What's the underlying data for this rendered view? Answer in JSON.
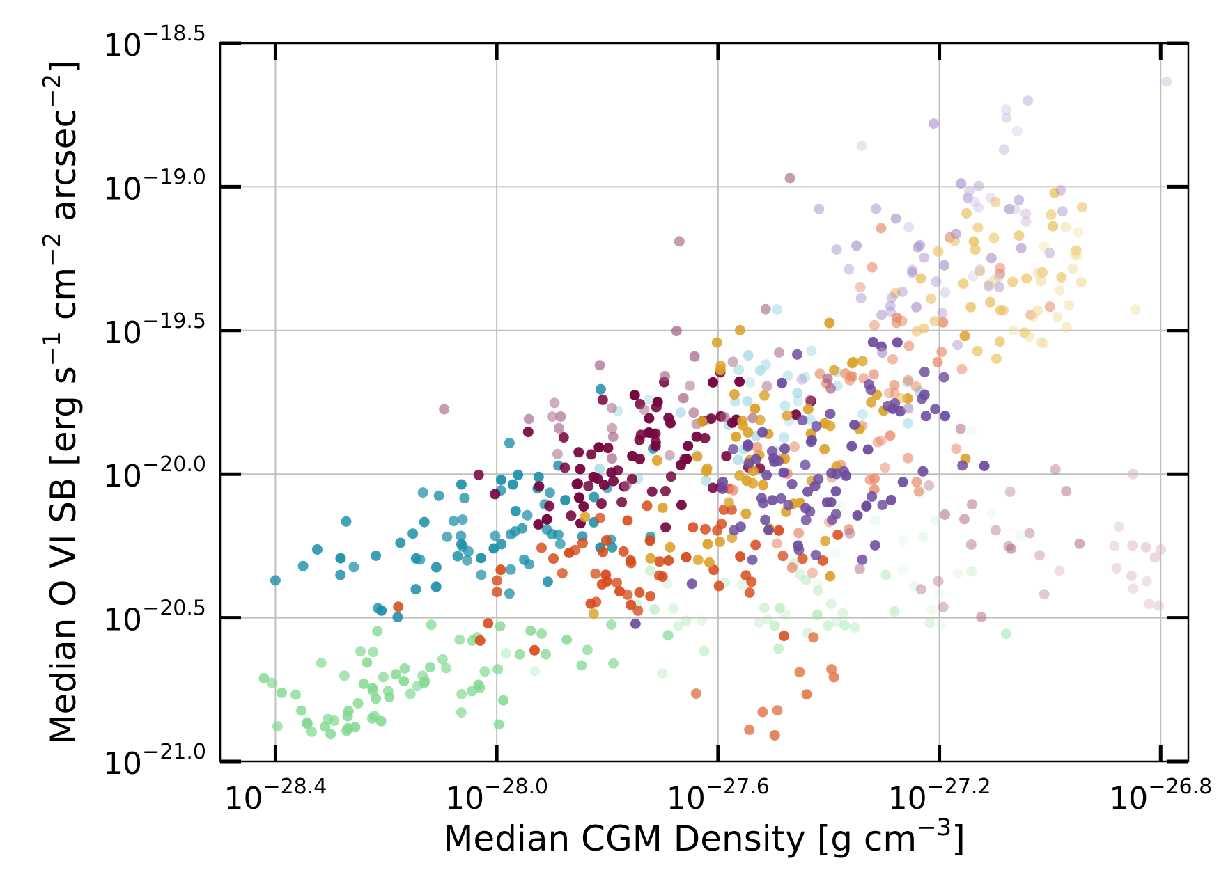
{
  "chart_data": {
    "type": "scatter",
    "title": "",
    "xlabel": {
      "main": "Median CGM Density [g cm",
      "sup": "−3",
      "end": "]"
    },
    "ylabel": {
      "p1": "Median O VI SB [erg s",
      "s1": "−1",
      "p2": " cm",
      "s2": "−2",
      "p3": " arcsec",
      "s3": "−2",
      "p4": "]"
    },
    "x_scale": "log10",
    "y_scale": "log10",
    "xlim": [
      -28.5,
      -26.75
    ],
    "ylim": [
      -21.0,
      -18.5
    ],
    "grid": true,
    "legend": "none",
    "x_ticks": [
      {
        "value": -28.4,
        "base": "10",
        "exp": "−28.4"
      },
      {
        "value": -28.0,
        "base": "10",
        "exp": "−28.0"
      },
      {
        "value": -27.6,
        "base": "10",
        "exp": "−27.6"
      },
      {
        "value": -27.2,
        "base": "10",
        "exp": "−27.2"
      },
      {
        "value": -26.8,
        "base": "10",
        "exp": "−26.8"
      }
    ],
    "y_ticks": [
      {
        "value": -21.0,
        "base": "10",
        "exp": "−21.0"
      },
      {
        "value": -20.5,
        "base": "10",
        "exp": "−20.5"
      },
      {
        "value": -20.0,
        "base": "10",
        "exp": "−20.0"
      },
      {
        "value": -19.5,
        "base": "10",
        "exp": "−19.5"
      },
      {
        "value": -19.0,
        "base": "10",
        "exp": "−19.0"
      },
      {
        "value": -18.5,
        "base": "10",
        "exp": "−18.5"
      }
    ],
    "series": [
      {
        "name": "light-green",
        "color": "#7fd88f",
        "cx": -28.15,
        "cy": -20.72,
        "sx": 0.16,
        "sy": 0.13,
        "rho": 0.5,
        "n": 70,
        "alpha": [
          0.65,
          0.85
        ],
        "seed": 11
      },
      {
        "name": "pale-green",
        "color": "#9fe3a8",
        "cx": -27.55,
        "cy": -20.47,
        "sx": 0.2,
        "sy": 0.09,
        "rho": 0.2,
        "n": 40,
        "alpha": [
          0.25,
          0.55
        ],
        "seed": 12
      },
      {
        "name": "faint-green",
        "color": "#c8f0cc",
        "cx": -27.25,
        "cy": -20.25,
        "sx": 0.13,
        "sy": 0.15,
        "rho": 0.1,
        "n": 20,
        "alpha": [
          0.2,
          0.4
        ],
        "seed": 13
      },
      {
        "name": "teal",
        "color": "#1c8fa8",
        "cx": -28.0,
        "cy": -20.2,
        "sx": 0.14,
        "sy": 0.16,
        "rho": 0.5,
        "n": 70,
        "alpha": [
          0.7,
          0.95
        ],
        "seed": 21
      },
      {
        "name": "light-teal",
        "color": "#8fd0e0",
        "cx": -27.55,
        "cy": -19.8,
        "sx": 0.12,
        "sy": 0.15,
        "rho": 0.4,
        "n": 36,
        "alpha": [
          0.35,
          0.65
        ],
        "seed": 22
      },
      {
        "name": "red-orange",
        "color": "#d64a1a",
        "cx": -27.75,
        "cy": -20.3,
        "sx": 0.18,
        "sy": 0.12,
        "rho": 0.3,
        "n": 60,
        "alpha": [
          0.75,
          0.95
        ],
        "seed": 31
      },
      {
        "name": "orange-low",
        "color": "#e07040",
        "cx": -27.47,
        "cy": -20.78,
        "sx": 0.05,
        "sy": 0.09,
        "rho": 0.3,
        "n": 10,
        "alpha": [
          0.75,
          0.9
        ],
        "seed": 32
      },
      {
        "name": "salmon",
        "color": "#e88a6a",
        "cx": -27.3,
        "cy": -19.7,
        "sx": 0.12,
        "sy": 0.3,
        "rho": 0.55,
        "n": 55,
        "alpha": [
          0.45,
          0.8
        ],
        "seed": 33
      },
      {
        "name": "dark-maroon",
        "color": "#76073f",
        "cx": -27.75,
        "cy": -19.95,
        "sx": 0.12,
        "sy": 0.13,
        "rho": 0.3,
        "n": 75,
        "alpha": [
          0.85,
          1.0
        ],
        "seed": 41
      },
      {
        "name": "mauve",
        "color": "#a05a80",
        "cx": -27.65,
        "cy": -19.75,
        "sx": 0.16,
        "sy": 0.13,
        "rho": 0.3,
        "n": 30,
        "alpha": [
          0.45,
          0.7
        ],
        "seed": 42
      },
      {
        "name": "gold",
        "color": "#dca22b",
        "cx": -27.5,
        "cy": -19.9,
        "sx": 0.14,
        "sy": 0.25,
        "rho": 0.55,
        "n": 65,
        "alpha": [
          0.8,
          0.95
        ],
        "seed": 51
      },
      {
        "name": "light-gold",
        "color": "#eac060",
        "cx": -27.15,
        "cy": -19.35,
        "sx": 0.1,
        "sy": 0.18,
        "rho": 0.35,
        "n": 35,
        "alpha": [
          0.55,
          0.8
        ],
        "seed": 52
      },
      {
        "name": "pale-gold",
        "color": "#f0d890",
        "cx": -26.98,
        "cy": -19.4,
        "sx": 0.07,
        "sy": 0.12,
        "rho": 0.2,
        "n": 22,
        "alpha": [
          0.35,
          0.55
        ],
        "seed": 53
      },
      {
        "name": "purple",
        "color": "#6e4c9e",
        "cx": -27.4,
        "cy": -19.95,
        "sx": 0.12,
        "sy": 0.2,
        "rho": 0.5,
        "n": 85,
        "alpha": [
          0.8,
          0.95
        ],
        "seed": 61
      },
      {
        "name": "light-purple",
        "color": "#a890c8",
        "cx": -27.18,
        "cy": -19.25,
        "sx": 0.1,
        "sy": 0.2,
        "rho": 0.4,
        "n": 38,
        "alpha": [
          0.4,
          0.65
        ],
        "seed": 62
      },
      {
        "name": "faint-purple",
        "color": "#c8b8dc",
        "cx": -27.1,
        "cy": -19.0,
        "sx": 0.1,
        "sy": 0.2,
        "rho": 0.3,
        "n": 18,
        "alpha": [
          0.3,
          0.5
        ],
        "seed": 63
      },
      {
        "name": "dusty-rose",
        "color": "#b07090",
        "cx": -27.05,
        "cy": -20.25,
        "sx": 0.14,
        "sy": 0.13,
        "rho": 0.0,
        "n": 22,
        "alpha": [
          0.35,
          0.6
        ],
        "seed": 71
      },
      {
        "name": "faint-rose",
        "color": "#d8b0c4",
        "cx": -26.85,
        "cy": -20.3,
        "sx": 0.06,
        "sy": 0.12,
        "rho": 0.0,
        "n": 12,
        "alpha": [
          0.3,
          0.5
        ],
        "seed": 72
      }
    ],
    "extra_points": [
      {
        "x": -27.9,
        "y": -19.8,
        "color": "#a05a80",
        "alpha": 0.5
      },
      {
        "x": -27.67,
        "y": -19.19,
        "color": "#a05a80",
        "alpha": 0.6
      },
      {
        "x": -27.47,
        "y": -18.97,
        "color": "#a05a80",
        "alpha": 0.6
      },
      {
        "x": -27.04,
        "y": -18.7,
        "color": "#c8b8dc",
        "alpha": 0.6
      },
      {
        "x": -27.21,
        "y": -18.78,
        "color": "#a890c8",
        "alpha": 0.6
      },
      {
        "x": -28.4,
        "y": -20.37,
        "color": "#1c8fa8",
        "alpha": 0.8
      },
      {
        "x": -28.35,
        "y": -20.32,
        "color": "#1c8fa8",
        "alpha": 0.8
      },
      {
        "x": -26.85,
        "y": -20.0,
        "color": "#d8b0c4",
        "alpha": 0.5
      },
      {
        "x": -26.81,
        "y": -20.29,
        "color": "#d8b0c4",
        "alpha": 0.5
      }
    ]
  }
}
